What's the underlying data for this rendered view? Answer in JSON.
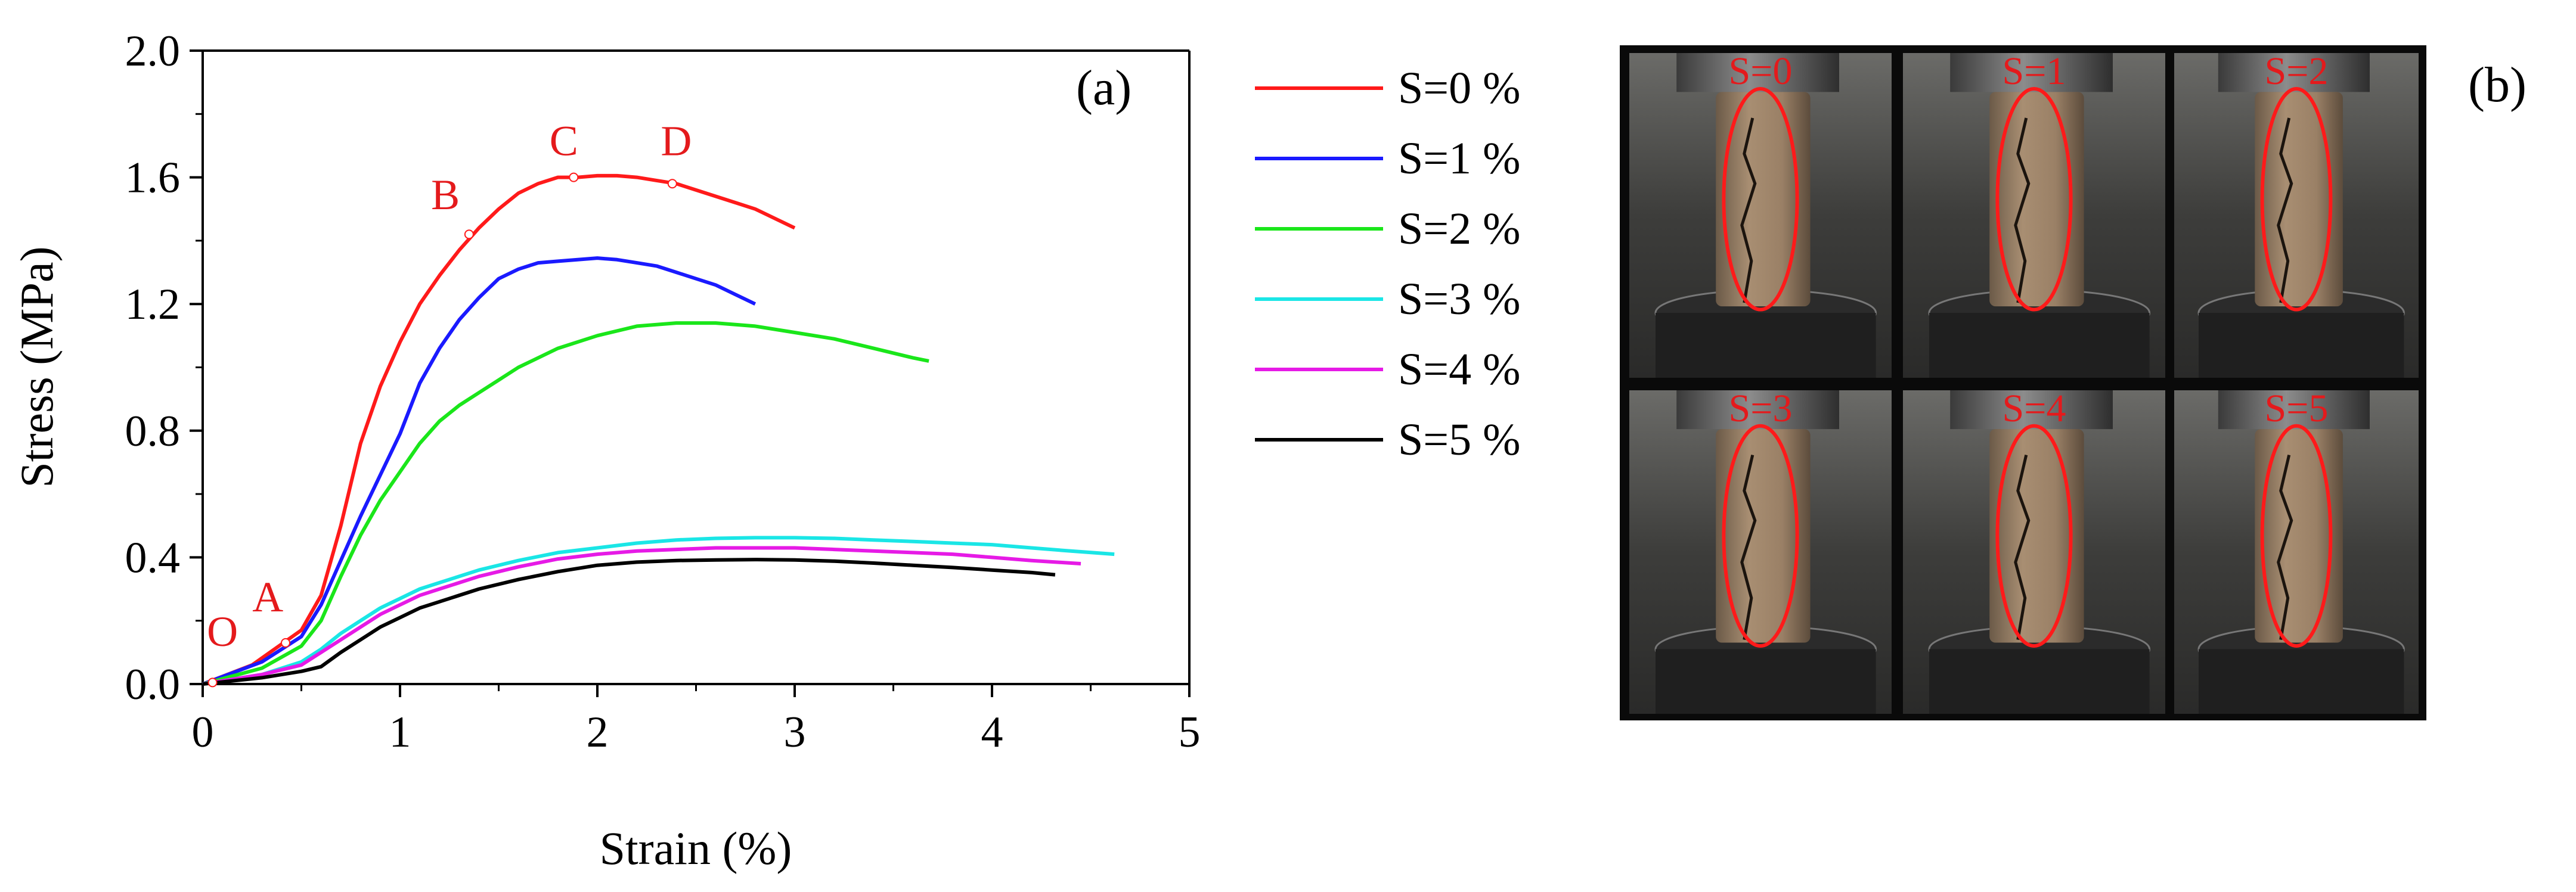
{
  "panel_a": "(a)",
  "panel_b": "(b)",
  "chart_data": {
    "type": "line",
    "xlabel": "Strain (%)",
    "ylabel": "Stress (MPa)",
    "xlim": [
      0,
      5
    ],
    "ylim": [
      0,
      2.0
    ],
    "xticks": [
      "0",
      "1",
      "2",
      "3",
      "4",
      "5"
    ],
    "yticks": [
      "0.0",
      "0.4",
      "0.8",
      "1.2",
      "1.6",
      "2.0"
    ],
    "grid": false,
    "legend_position": "outside-right",
    "series": [
      {
        "name": "S=0 %",
        "color": "#ff1a1a",
        "x": [
          0,
          0.25,
          0.5,
          0.6,
          0.7,
          0.8,
          0.9,
          1.0,
          1.1,
          1.2,
          1.3,
          1.4,
          1.5,
          1.6,
          1.7,
          1.8,
          1.9,
          2.0,
          2.1,
          2.2,
          2.3,
          2.4,
          2.5,
          2.6,
          2.7,
          2.8,
          2.9,
          3.0
        ],
        "y": [
          0,
          0.06,
          0.17,
          0.28,
          0.5,
          0.76,
          0.94,
          1.08,
          1.2,
          1.29,
          1.37,
          1.44,
          1.5,
          1.55,
          1.58,
          1.6,
          1.6,
          1.605,
          1.605,
          1.6,
          1.59,
          1.58,
          1.56,
          1.54,
          1.52,
          1.5,
          1.47,
          1.44
        ]
      },
      {
        "name": "S=1 %",
        "color": "#1a1aff",
        "x": [
          0,
          0.3,
          0.5,
          0.6,
          0.7,
          0.8,
          0.9,
          1.0,
          1.1,
          1.2,
          1.3,
          1.4,
          1.5,
          1.6,
          1.7,
          1.8,
          1.9,
          2.0,
          2.1,
          2.2,
          2.3,
          2.4,
          2.5,
          2.6,
          2.7,
          2.8
        ],
        "y": [
          0,
          0.07,
          0.15,
          0.25,
          0.39,
          0.53,
          0.66,
          0.79,
          0.95,
          1.06,
          1.15,
          1.22,
          1.28,
          1.31,
          1.33,
          1.335,
          1.34,
          1.345,
          1.34,
          1.33,
          1.32,
          1.3,
          1.28,
          1.26,
          1.23,
          1.2
        ]
      },
      {
        "name": "S=2 %",
        "color": "#1ae61a",
        "x": [
          0,
          0.3,
          0.5,
          0.6,
          0.7,
          0.8,
          0.9,
          1.0,
          1.1,
          1.2,
          1.3,
          1.4,
          1.5,
          1.6,
          1.8,
          2.0,
          2.2,
          2.4,
          2.6,
          2.8,
          3.0,
          3.2,
          3.4,
          3.6,
          3.68
        ],
        "y": [
          0,
          0.05,
          0.12,
          0.2,
          0.34,
          0.47,
          0.58,
          0.67,
          0.76,
          0.83,
          0.88,
          0.92,
          0.96,
          1.0,
          1.06,
          1.1,
          1.13,
          1.14,
          1.14,
          1.13,
          1.11,
          1.09,
          1.06,
          1.03,
          1.02
        ]
      },
      {
        "name": "S=3 %",
        "color": "#1ae6e6",
        "x": [
          0,
          0.3,
          0.5,
          0.6,
          0.7,
          0.8,
          0.9,
          1.0,
          1.1,
          1.2,
          1.4,
          1.6,
          1.8,
          2.0,
          2.2,
          2.4,
          2.6,
          2.8,
          3.0,
          3.2,
          3.4,
          3.6,
          3.8,
          4.0,
          4.2,
          4.4,
          4.62
        ],
        "y": [
          0,
          0.03,
          0.07,
          0.11,
          0.16,
          0.2,
          0.24,
          0.27,
          0.3,
          0.32,
          0.36,
          0.39,
          0.415,
          0.43,
          0.445,
          0.455,
          0.46,
          0.462,
          0.462,
          0.46,
          0.455,
          0.45,
          0.445,
          0.44,
          0.43,
          0.42,
          0.41
        ]
      },
      {
        "name": "S=4 %",
        "color": "#e61ae6",
        "x": [
          0,
          0.3,
          0.5,
          0.6,
          0.7,
          0.8,
          0.9,
          1.0,
          1.1,
          1.2,
          1.4,
          1.6,
          1.8,
          2.0,
          2.2,
          2.4,
          2.6,
          2.8,
          3.0,
          3.2,
          3.4,
          3.6,
          3.8,
          4.0,
          4.2,
          4.45
        ],
        "y": [
          0,
          0.03,
          0.06,
          0.1,
          0.14,
          0.18,
          0.22,
          0.25,
          0.28,
          0.3,
          0.34,
          0.37,
          0.395,
          0.41,
          0.42,
          0.425,
          0.43,
          0.43,
          0.43,
          0.425,
          0.42,
          0.415,
          0.41,
          0.4,
          0.39,
          0.38
        ]
      },
      {
        "name": "S=5 %",
        "color": "#000000",
        "x": [
          0,
          0.3,
          0.5,
          0.6,
          0.7,
          0.8,
          0.9,
          1.0,
          1.1,
          1.2,
          1.4,
          1.6,
          1.8,
          2.0,
          2.2,
          2.4,
          2.6,
          2.8,
          3.0,
          3.2,
          3.4,
          3.6,
          3.8,
          4.0,
          4.2,
          4.32
        ],
        "y": [
          0,
          0.02,
          0.04,
          0.055,
          0.1,
          0.14,
          0.18,
          0.21,
          0.24,
          0.26,
          0.3,
          0.33,
          0.355,
          0.375,
          0.385,
          0.39,
          0.392,
          0.393,
          0.392,
          0.388,
          0.382,
          0.375,
          0.368,
          0.36,
          0.352,
          0.345
        ]
      }
    ],
    "annotations": [
      {
        "text": "O",
        "x": 0.1,
        "y": 0.12
      },
      {
        "text": "A",
        "x": 0.33,
        "y": 0.23
      },
      {
        "text": "B",
        "x": 1.23,
        "y": 1.5
      },
      {
        "text": "C",
        "x": 1.83,
        "y": 1.67
      },
      {
        "text": "D",
        "x": 2.4,
        "y": 1.67
      }
    ],
    "markers": [
      {
        "x": 0.05,
        "y": 0.005
      },
      {
        "x": 0.42,
        "y": 0.13
      },
      {
        "x": 1.35,
        "y": 1.42
      },
      {
        "x": 1.88,
        "y": 1.6
      },
      {
        "x": 2.38,
        "y": 1.58
      }
    ]
  },
  "photo_labels": [
    "S=0",
    "S=1",
    "S=2",
    "S=3",
    "S=4",
    "S=5"
  ]
}
